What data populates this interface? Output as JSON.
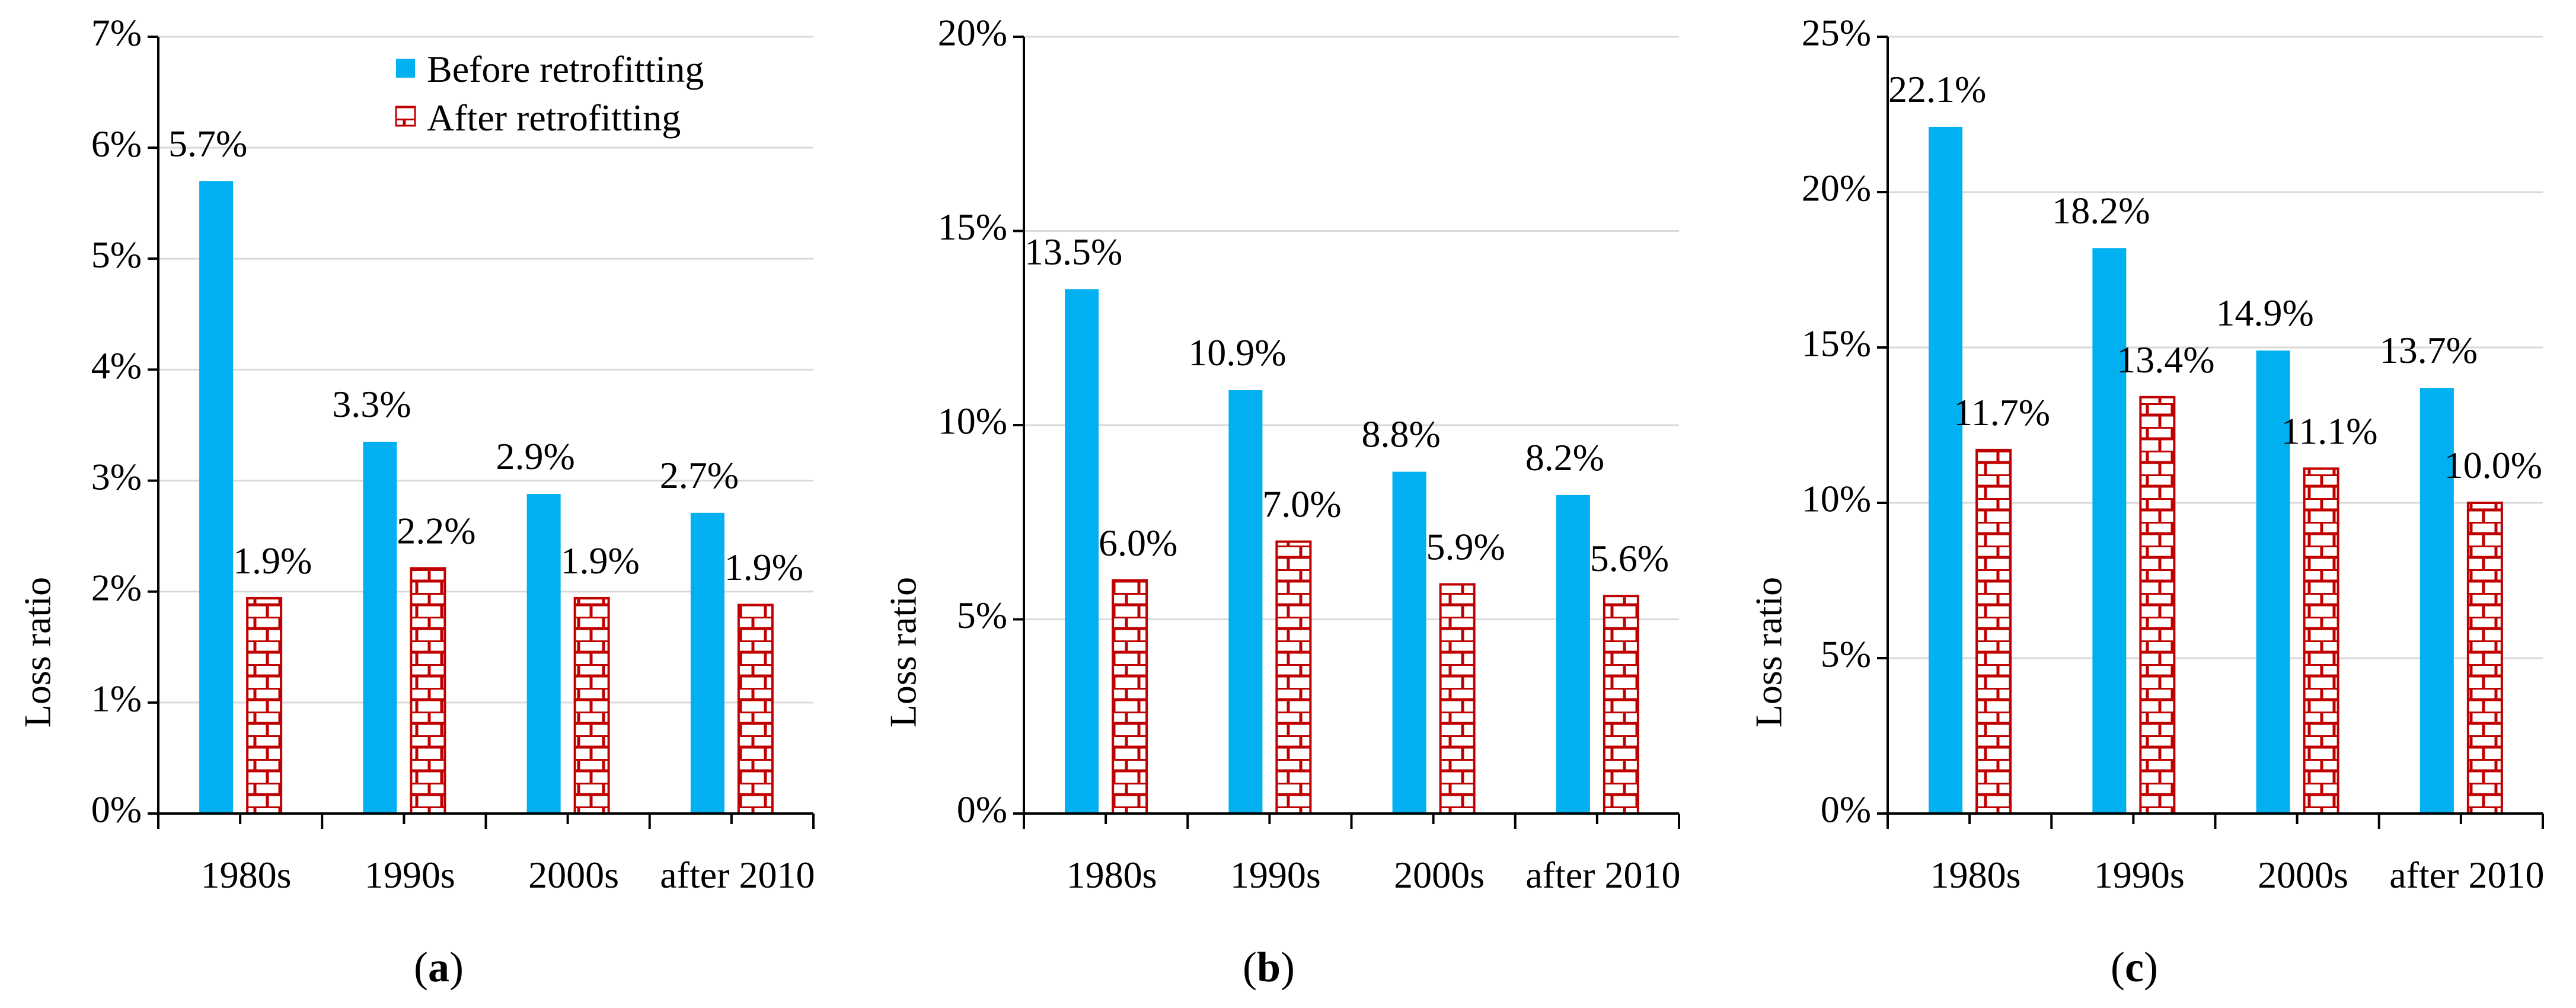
{
  "legend": {
    "before_label": "Before retrofitting",
    "after_label": "After retrofitting"
  },
  "colors": {
    "before": "#00B0F0",
    "after": "#C00000",
    "grid": "#D9D9D9",
    "axis": "#000000"
  },
  "chart_data": [
    {
      "type": "bar",
      "panel": "a",
      "ylabel": "Loss ratio",
      "categories": [
        "1980s",
        "1990s",
        "2000s",
        "after 2010"
      ],
      "ylim": [
        0,
        7
      ],
      "yticks": [
        0,
        1,
        2,
        3,
        4,
        5,
        6,
        7
      ],
      "ytick_labels": [
        "0%",
        "1%",
        "2%",
        "3%",
        "4%",
        "5%",
        "6%",
        "7%"
      ],
      "series": [
        {
          "name": "Before retrofitting",
          "values": [
            5.7,
            3.35,
            2.88,
            2.71
          ],
          "labels": [
            "5.7%",
            "3.3%",
            "2.9%",
            "2.7%"
          ]
        },
        {
          "name": "After retrofitting",
          "values": [
            1.94,
            2.21,
            1.94,
            1.88
          ],
          "labels": [
            "1.9%",
            "2.2%",
            "1.9%",
            "1.9%"
          ]
        }
      ]
    },
    {
      "type": "bar",
      "panel": "b",
      "ylabel": "Loss ratio",
      "categories": [
        "1980s",
        "1990s",
        "2000s",
        "after 2010"
      ],
      "ylim": [
        0,
        20
      ],
      "yticks": [
        0,
        5,
        10,
        15,
        20
      ],
      "ytick_labels": [
        "0%",
        "5%",
        "10%",
        "15%",
        "20%"
      ],
      "series": [
        {
          "name": "Before retrofitting",
          "values": [
            13.5,
            10.9,
            8.8,
            8.2
          ],
          "labels": [
            "13.5%",
            "10.9%",
            "8.8%",
            "8.2%"
          ]
        },
        {
          "name": "After retrofitting",
          "values": [
            6.0,
            7.0,
            5.9,
            5.6
          ],
          "labels": [
            "6.0%",
            "7.0%",
            "5.9%",
            "5.6%"
          ]
        }
      ]
    },
    {
      "type": "bar",
      "panel": "c",
      "ylabel": "Loss ratio",
      "categories": [
        "1980s",
        "1990s",
        "2000s",
        "after 2010"
      ],
      "ylim": [
        0,
        25
      ],
      "yticks": [
        0,
        5,
        10,
        15,
        20,
        25
      ],
      "ytick_labels": [
        "0%",
        "5%",
        "10%",
        "15%",
        "20%",
        "25%"
      ],
      "series": [
        {
          "name": "Before retrofitting",
          "values": [
            22.1,
            18.2,
            14.9,
            13.7
          ],
          "labels": [
            "22.1%",
            "18.2%",
            "14.9%",
            "13.7%"
          ]
        },
        {
          "name": "After retrofitting",
          "values": [
            11.7,
            13.4,
            11.1,
            10.0
          ],
          "labels": [
            "11.7%",
            "13.4%",
            "11.1%",
            "10.0%"
          ]
        }
      ]
    }
  ]
}
